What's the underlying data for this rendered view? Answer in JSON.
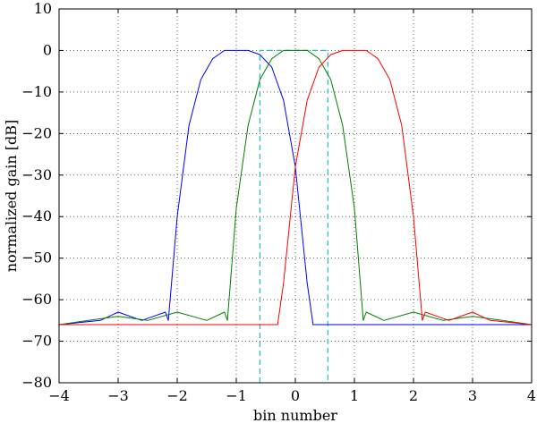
{
  "chart_data": {
    "type": "line",
    "title": "",
    "xlabel": "bin number",
    "ylabel": "normalized gain [dB]",
    "xlim": [
      -4,
      4
    ],
    "ylim": [
      -80,
      10
    ],
    "xticks": [
      -4,
      -3,
      -2,
      -1,
      0,
      1,
      2,
      3,
      4
    ],
    "xtick_labels": [
      "−4",
      "−3",
      "−2",
      "−1",
      "0",
      "1",
      "2",
      "3",
      "4"
    ],
    "yticks": [
      10,
      0,
      -10,
      -20,
      -30,
      -40,
      -50,
      -60,
      -70,
      -80
    ],
    "ytick_labels": [
      "10",
      "0",
      "−10",
      "−20",
      "−30",
      "−40",
      "−50",
      "−60",
      "−70",
      "−80"
    ],
    "grid": true,
    "legend": null,
    "passband": {
      "x": [
        -0.6,
        -0.6,
        0.55,
        0.55
      ],
      "y": [
        -80,
        0,
        0,
        -80
      ],
      "color": "#1fbfbf",
      "style": "dashed"
    },
    "series": [
      {
        "color": "#0000ff",
        "center": -1,
        "x": [
          -4,
          -3.3,
          -3,
          -2.6,
          -2.4,
          -2.2,
          -2.15,
          -2.0,
          -1.8,
          -1.6,
          -1.4,
          -1.2,
          -1.0,
          -0.8,
          -0.6,
          -0.4,
          -0.2,
          0.0,
          0.2,
          0.3,
          0.5,
          1.0,
          1.5,
          2.0,
          2.5,
          3.0,
          3.5,
          4.0
        ],
        "y": [
          -66,
          -65,
          -63,
          -65,
          -64,
          -63,
          -65,
          -40,
          -18,
          -7,
          -2,
          0,
          0,
          0,
          -1,
          -4,
          -12,
          -28,
          -56,
          -66,
          -66,
          -66,
          -66,
          -66,
          -66,
          -66,
          -66,
          -66
        ]
      },
      {
        "color": "#008000",
        "center": 0,
        "x": [
          -4,
          -3.5,
          -3,
          -2.5,
          -2.0,
          -1.5,
          -1.2,
          -1.15,
          -1.0,
          -0.8,
          -0.6,
          -0.4,
          -0.2,
          0.0,
          0.2,
          0.4,
          0.6,
          0.8,
          1.0,
          1.15,
          1.2,
          1.5,
          2.0,
          2.5,
          3.0,
          3.5,
          4.0
        ],
        "y": [
          -66,
          -65,
          -64,
          -65,
          -63,
          -65,
          -63,
          -65,
          -38,
          -18,
          -7,
          -2,
          0,
          0,
          0,
          -2,
          -7,
          -18,
          -38,
          -65,
          -63,
          -65,
          -63,
          -65,
          -64,
          -65,
          -66
        ]
      },
      {
        "color": "#ff0000",
        "center": 1,
        "x": [
          -4,
          -3.5,
          -3.0,
          -2.5,
          -2.0,
          -1.5,
          -1.0,
          -0.5,
          -0.3,
          -0.2,
          0.0,
          0.2,
          0.4,
          0.6,
          0.8,
          1.0,
          1.2,
          1.4,
          1.6,
          1.8,
          2.0,
          2.15,
          2.2,
          2.4,
          2.6,
          3.0,
          3.3,
          4.0
        ],
        "y": [
          -66,
          -66,
          -66,
          -66,
          -66,
          -66,
          -66,
          -66,
          -66,
          -56,
          -28,
          -12,
          -4,
          -1,
          0,
          0,
          0,
          -2,
          -7,
          -18,
          -40,
          -65,
          -63,
          -64,
          -65,
          -63,
          -65,
          -66
        ]
      }
    ]
  }
}
